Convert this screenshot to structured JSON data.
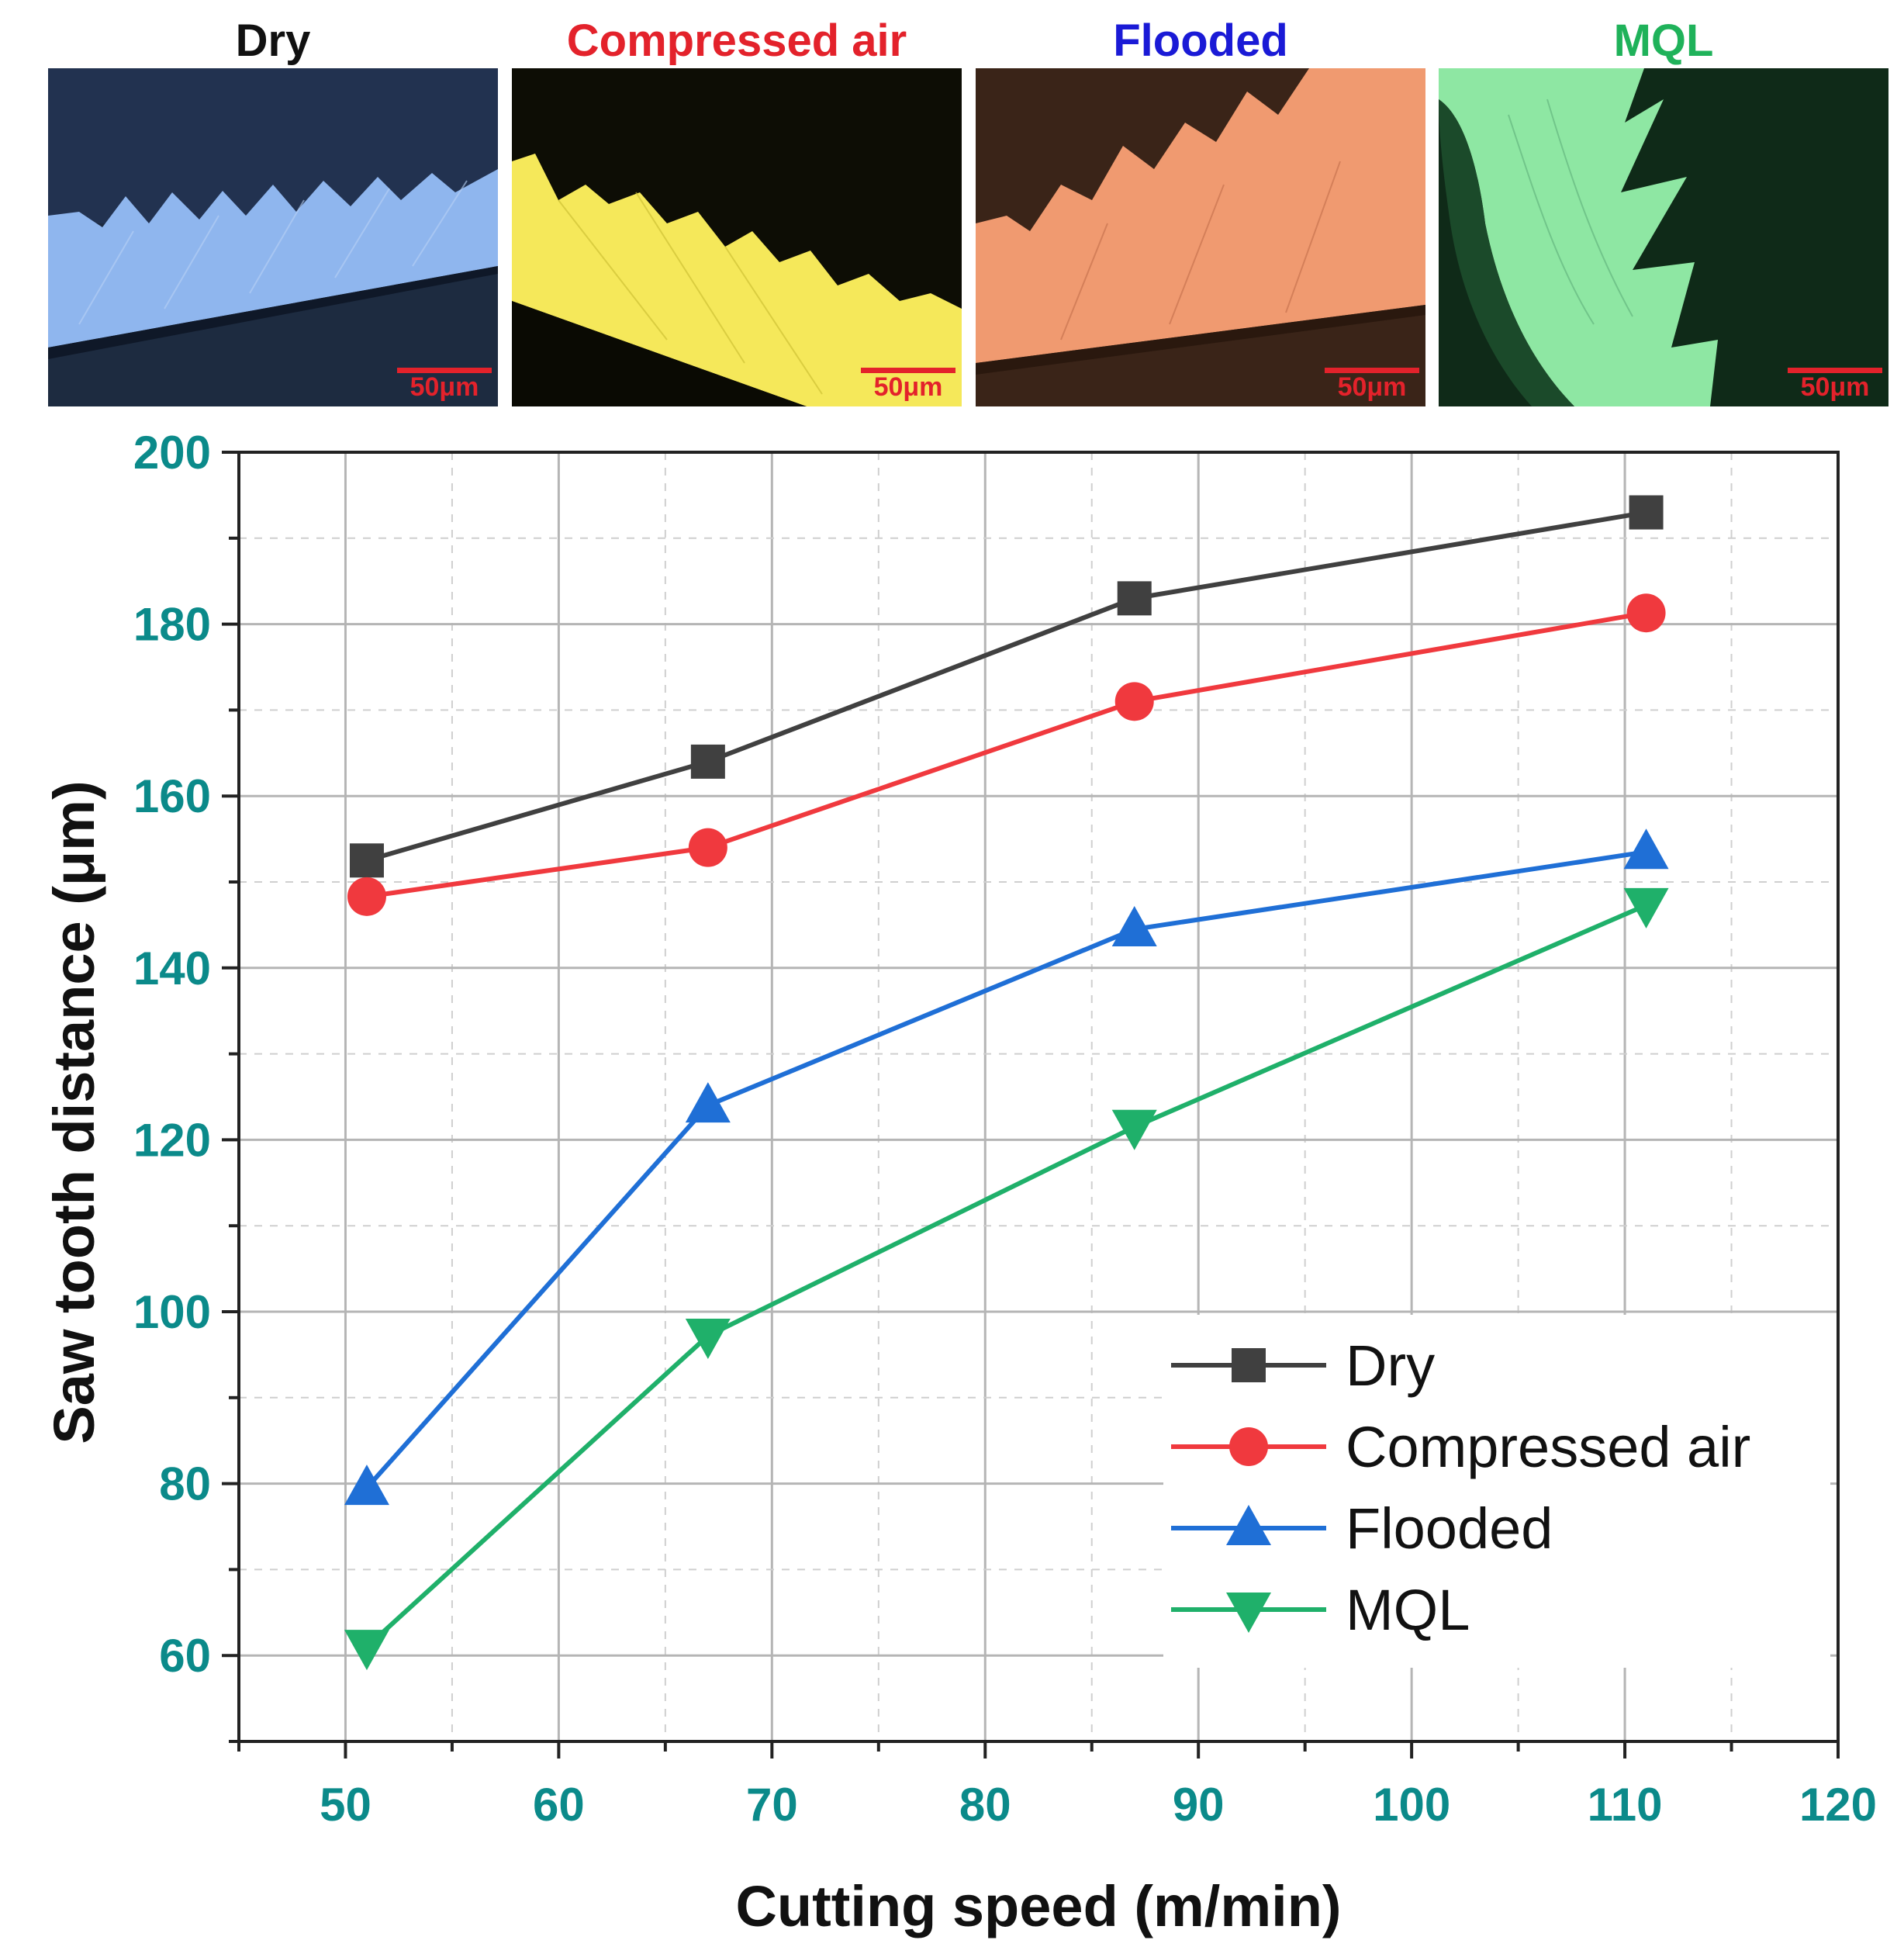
{
  "panels": [
    {
      "label": "Dry",
      "label_color": "#111111",
      "scale": "50μm"
    },
    {
      "label": "Compressed air",
      "label_color": "#e3222b",
      "scale": "50μm"
    },
    {
      "label": "Flooded",
      "label_color": "#1a1ad6",
      "scale": "50μm"
    },
    {
      "label": "MQL",
      "label_color": "#1fb25a",
      "scale": "50μm"
    }
  ],
  "chart_data": {
    "type": "line",
    "title": "",
    "xlabel": "Cutting speed (m/min)",
    "ylabel": "Saw tooth distance (μm)",
    "xlim": [
      45,
      120
    ],
    "ylim": [
      50,
      200
    ],
    "xticks": [
      50,
      60,
      70,
      80,
      90,
      100,
      110,
      120
    ],
    "yticks": [
      60,
      80,
      100,
      120,
      140,
      160,
      180,
      200
    ],
    "grid": true,
    "legend_position": "bottom-right",
    "x": [
      51,
      67,
      87,
      111
    ],
    "series": [
      {
        "name": "Dry",
        "color": "#404040",
        "marker": "square",
        "values": [
          152.5,
          164,
          183,
          193
        ]
      },
      {
        "name": "Compressed air",
        "color": "#f0393e",
        "marker": "circle",
        "values": [
          148.3,
          154,
          171,
          181.3
        ]
      },
      {
        "name": "Flooded",
        "color": "#1f6fd6",
        "marker": "triangle-up",
        "values": [
          79.5,
          124,
          144.5,
          153.5
        ]
      },
      {
        "name": "MQL",
        "color": "#1fb06a",
        "marker": "triangle-down",
        "values": [
          61,
          97.2,
          121.5,
          147.3
        ]
      }
    ]
  }
}
